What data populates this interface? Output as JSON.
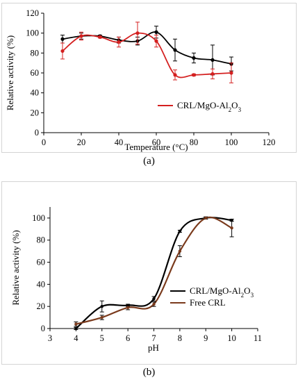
{
  "chart_data": [
    {
      "panel_label": "(a)",
      "type": "line",
      "xlabel": "Temperature (°C)",
      "ylabel": "Relative activity (%)",
      "xlim": [
        0,
        120
      ],
      "ylim": [
        0,
        120
      ],
      "xticks": [
        0,
        20,
        40,
        60,
        80,
        100,
        120
      ],
      "yticks": [
        0,
        20,
        40,
        60,
        80,
        100,
        120
      ],
      "grid": false,
      "legend_position": "right-middle",
      "series": [
        {
          "name": "",
          "color": "#000000",
          "x": [
            10,
            20,
            30,
            40,
            50,
            60,
            70,
            80,
            90,
            100
          ],
          "y": [
            94,
            97,
            97,
            93,
            92,
            101,
            83,
            75,
            73,
            69
          ],
          "err": [
            4,
            3,
            1,
            3,
            4,
            6,
            11,
            5,
            15,
            7
          ]
        },
        {
          "name": "CRL/MgO-Al2O3",
          "legend_text": "CRL/MgO-Al",
          "legend_sub1": "2",
          "legend_mid": "O",
          "legend_sub2": "3",
          "color": "#d42020",
          "x": [
            10,
            20,
            30,
            40,
            50,
            60,
            70,
            80,
            90,
            100
          ],
          "y": [
            82,
            97,
            96,
            91,
            100,
            92,
            58,
            58,
            59,
            60
          ],
          "err": [
            8,
            4,
            1,
            5,
            11,
            6,
            5,
            1,
            5,
            10
          ]
        }
      ]
    },
    {
      "panel_label": "(b)",
      "type": "line",
      "xlabel": "pH",
      "ylabel": "Relative activity (%)",
      "xlim": [
        3,
        11
      ],
      "ylim": [
        0,
        110
      ],
      "xticks": [
        3,
        4,
        5,
        6,
        7,
        8,
        9,
        10,
        11
      ],
      "yticks": [
        0,
        20,
        40,
        60,
        80,
        100
      ],
      "grid": false,
      "legend_position": "right-middle",
      "series": [
        {
          "name": "CRL/MgO-Al2O3",
          "legend_text": "CRL/MgO-Al",
          "legend_sub1": "2",
          "legend_mid": "O",
          "legend_sub2": "3",
          "color": "#000000",
          "x": [
            4,
            5,
            6,
            7,
            8,
            9,
            10
          ],
          "y": [
            0,
            20,
            21,
            27,
            88,
            100,
            98
          ],
          "err": [
            1,
            5,
            1,
            2,
            1,
            1,
            1
          ]
        },
        {
          "name": "Free CRL",
          "legend_text": "Free CRL",
          "color": "#7a3a1c",
          "x": [
            4,
            5,
            6,
            7,
            8,
            9,
            10
          ],
          "y": [
            4,
            10,
            19,
            22,
            70,
            100,
            91
          ],
          "err": [
            2,
            2,
            2,
            2,
            5,
            1,
            8
          ]
        }
      ]
    }
  ]
}
